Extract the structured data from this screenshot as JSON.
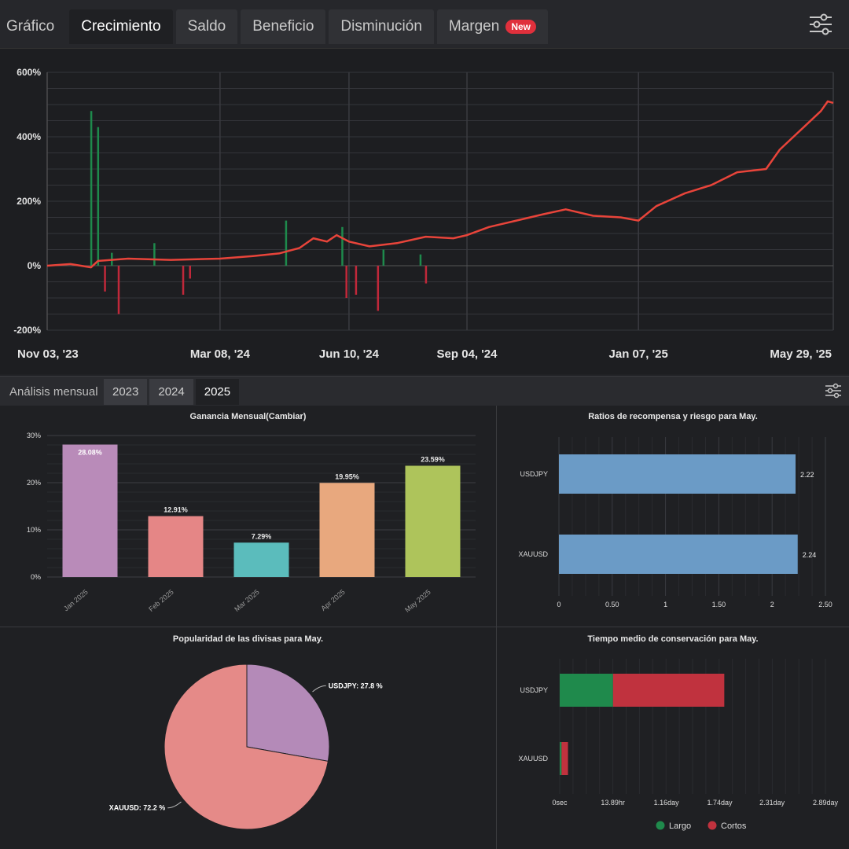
{
  "tabs": [
    {
      "label": "Gráfico"
    },
    {
      "label": "Crecimiento"
    },
    {
      "label": "Saldo"
    },
    {
      "label": "Beneficio"
    },
    {
      "label": "Disminución"
    },
    {
      "label": "Margen",
      "badge": "New"
    }
  ],
  "active_tab": "Crecimiento",
  "monthly": {
    "label": "Análisis mensual",
    "years": [
      "2023",
      "2024",
      "2025"
    ],
    "active_year": "2025"
  },
  "colors": {
    "growth_line": "#e8443a",
    "positive_bar": "#1e8a4c",
    "negative_bar": "#c0283a",
    "grid": "#34353a"
  },
  "chart_data": [
    {
      "type": "line",
      "title": "",
      "x_ticks": [
        "Nov 03, '23",
        "Mar 08, '24",
        "Jun 10, '24",
        "Sep 04, '24",
        "Jan 07, '25",
        "May 29, '25"
      ],
      "y_ticks": [
        "600%",
        "400%",
        "200%",
        "0%",
        "-200%"
      ],
      "ylim": [
        -200,
        600
      ],
      "series": [
        {
          "kind": "growth_line",
          "points": [
            [
              "Nov 03, '23",
              0
            ],
            [
              "Nov 20, '23",
              5
            ],
            [
              "Dec 05, '23",
              -5
            ],
            [
              "Dec 10, '23",
              15
            ],
            [
              "Jan 01, '24",
              22
            ],
            [
              "Feb 01, '24",
              18
            ],
            [
              "Mar 08, '24",
              22
            ],
            [
              "Apr 01, '24",
              30
            ],
            [
              "Apr 20, '24",
              38
            ],
            [
              "May 05, '24",
              55
            ],
            [
              "May 15, '24",
              85
            ],
            [
              "May 25, '24",
              75
            ],
            [
              "Jun 01, '24",
              95
            ],
            [
              "Jun 10, '24",
              75
            ],
            [
              "Jun 25, '24",
              60
            ],
            [
              "Jul 15, '24",
              70
            ],
            [
              "Aug 05, '24",
              90
            ],
            [
              "Aug 25, '24",
              85
            ],
            [
              "Sep 04, '24",
              95
            ],
            [
              "Sep 20, '24",
              120
            ],
            [
              "Oct 10, '24",
              140
            ],
            [
              "Oct 30, '24",
              160
            ],
            [
              "Nov 15, '24",
              175
            ],
            [
              "Dec 05, '24",
              155
            ],
            [
              "Dec 25, '24",
              150
            ],
            [
              "Jan 07, '25",
              140
            ],
            [
              "Jan 20, '25",
              185
            ],
            [
              "Feb 10, '25",
              225
            ],
            [
              "Mar 01, '25",
              250
            ],
            [
              "Mar 20, '25",
              290
            ],
            [
              "Apr 10, '25",
              300
            ],
            [
              "Apr 20, '25",
              360
            ],
            [
              "May 05, '25",
              420
            ],
            [
              "May 20, '25",
              480
            ],
            [
              "May 25, '25",
              510
            ],
            [
              "May 29, '25",
              505
            ]
          ]
        },
        {
          "kind": "trade_bars",
          "bars": [
            [
              "Dec 05, '23",
              480
            ],
            [
              "Dec 10, '23",
              430
            ],
            [
              "Dec 15, '23",
              -80
            ],
            [
              "Dec 20, '23",
              40
            ],
            [
              "Dec 25, '23",
              -150
            ],
            [
              "Jan 20, '24",
              70
            ],
            [
              "Feb 10, '24",
              -90
            ],
            [
              "Feb 15, '24",
              -40
            ],
            [
              "Apr 25, '24",
              140
            ],
            [
              "Jun 05, '24",
              120
            ],
            [
              "Jun 08, '24",
              -100
            ],
            [
              "Jun 15, '24",
              -90
            ],
            [
              "Jul 01, '24",
              -140
            ],
            [
              "Jul 05, '24",
              50
            ],
            [
              "Aug 05, '24",
              -55
            ],
            [
              "Aug 01, '24",
              35
            ]
          ]
        }
      ]
    },
    {
      "type": "bar",
      "title": "Ganancia Mensual(Cambiar)",
      "categories": [
        "Jan 2025",
        "Feb 2025",
        "Mar 2025",
        "Apr 2025",
        "May 2025"
      ],
      "values": [
        28.08,
        12.91,
        7.29,
        19.95,
        23.59
      ],
      "labels": [
        "28.08%",
        "12.91%",
        "7.29%",
        "19.95%",
        "23.59%"
      ],
      "colors": [
        "#b98bb9",
        "#e58686",
        "#5bbcbc",
        "#e8a87e",
        "#aec45b"
      ],
      "y_ticks": [
        "30%",
        "20%",
        "10%",
        "0%"
      ],
      "ylim": [
        0,
        30
      ]
    },
    {
      "type": "bar",
      "orientation": "horizontal",
      "title": "Ratios de recompensa y riesgo para May.",
      "categories": [
        "USDJPY",
        "XAUUSD"
      ],
      "values": [
        2.22,
        2.24
      ],
      "labels": [
        "2.22",
        "2.24"
      ],
      "color": "#6b9bc6",
      "x_ticks": [
        "0",
        "0.50",
        "1",
        "1.50",
        "2",
        "2.50"
      ],
      "xlim": [
        0,
        2.5
      ]
    },
    {
      "type": "pie",
      "title": "Popularidad de las divisas para May.",
      "slices": [
        {
          "label": "USDJPY: 27.8 %",
          "value": 27.8,
          "color": "#b48ab8"
        },
        {
          "label": "XAUUSD: 72.2 %",
          "value": 72.2,
          "color": "#e58a88"
        }
      ]
    },
    {
      "type": "bar",
      "orientation": "horizontal",
      "stacked": true,
      "title": "Tiempo medio de conservación para May.",
      "categories": [
        "USDJPY",
        "XAUUSD"
      ],
      "x_ticks": [
        "0sec",
        "13.89hr",
        "1.16day",
        "1.74day",
        "2.31day",
        "2.89day"
      ],
      "x_tick_days": [
        0,
        0.5787,
        1.16,
        1.74,
        2.31,
        2.89
      ],
      "xlim_days": [
        0,
        2.89
      ],
      "series": [
        {
          "name": "Largo",
          "color": "#1f8a4c",
          "values_days": [
            0.58,
            0.02
          ]
        },
        {
          "name": "Cortos",
          "color": "#c0323e",
          "values_days": [
            1.21,
            0.07
          ]
        }
      ]
    }
  ]
}
